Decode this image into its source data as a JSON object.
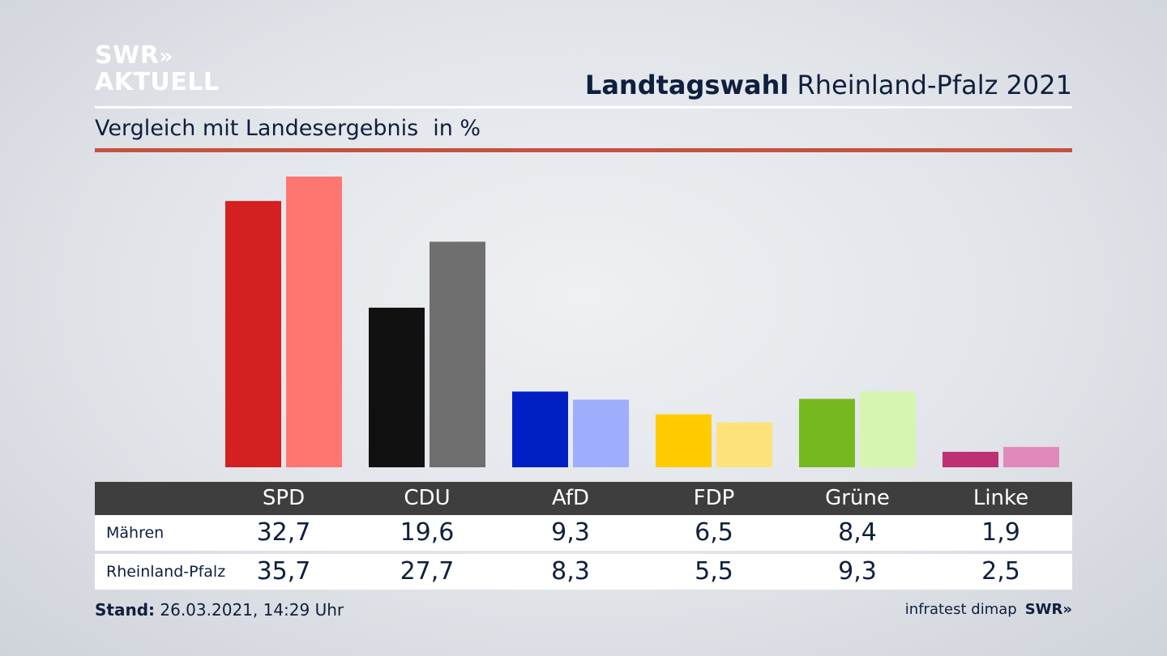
{
  "logo": {
    "line1": "SWR",
    "chevrons": "»",
    "line2": "AKTUELL"
  },
  "header": {
    "title_bold": "Landtagswahl",
    "title_rest": "Rheinland-Pfalz 2021",
    "subtitle": "Vergleich mit Landesergebnis",
    "unit": "in %"
  },
  "chart_data": {
    "type": "bar",
    "categories": [
      "SPD",
      "CDU",
      "AfD",
      "FDP",
      "Grüne",
      "Linke"
    ],
    "series": [
      {
        "name": "Mähren",
        "values": [
          32.7,
          19.6,
          9.3,
          6.5,
          8.4,
          1.9
        ],
        "display": [
          "32,7",
          "19,6",
          "9,3",
          "6,5",
          "8,4",
          "1,9"
        ],
        "colors": [
          "#d42020",
          "#111111",
          "#0020c4",
          "#ffcc00",
          "#76b820",
          "#be2f74"
        ]
      },
      {
        "name": "Rheinland-Pfalz",
        "values": [
          35.7,
          27.7,
          8.3,
          5.5,
          9.3,
          2.5
        ],
        "display": [
          "35,7",
          "27,7",
          "8,3",
          "5,5",
          "9,3",
          "2,5"
        ],
        "colors": [
          "#ff7570",
          "#706f6f",
          "#9eaefc",
          "#fde27a",
          "#d5f5b0",
          "#e189b8"
        ]
      }
    ],
    "ylim": [
      0,
      36
    ]
  },
  "footer": {
    "stand_label": "Stand:",
    "stand_value": "26.03.2021, 14:29 Uhr",
    "source": "infratest dimap",
    "brand": "SWR»"
  }
}
